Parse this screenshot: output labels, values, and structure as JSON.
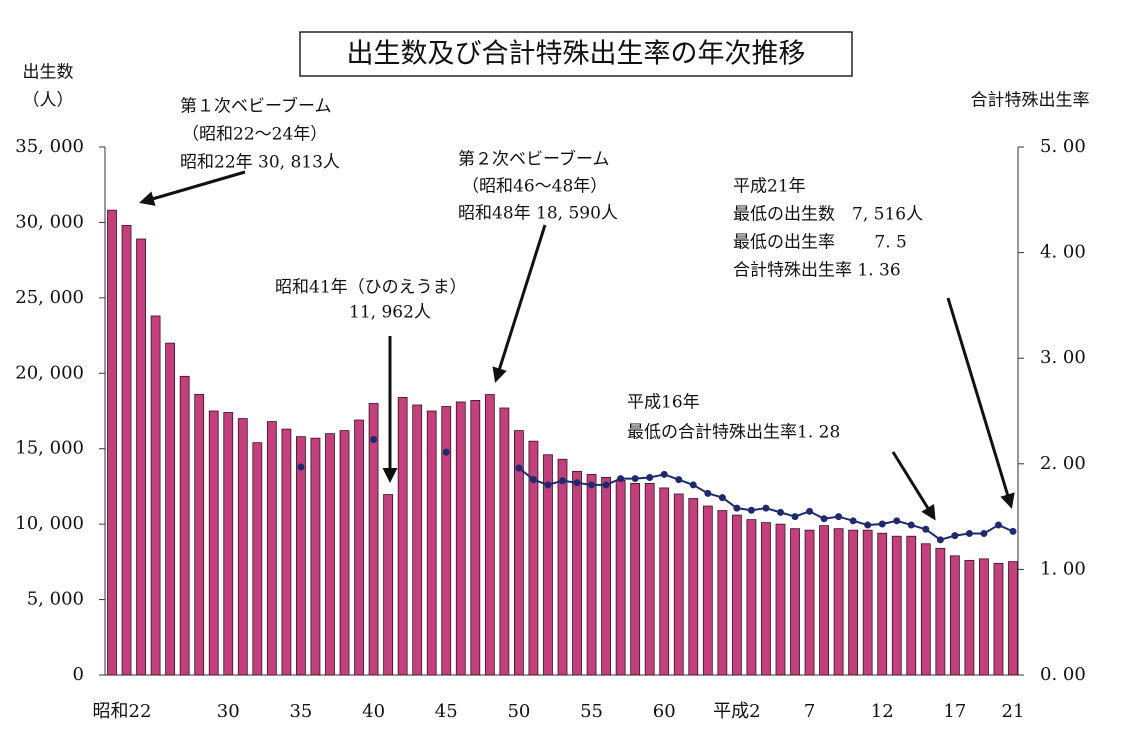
{
  "chart_data": {
    "type": "bar_line",
    "title": "出生数及び合計特殊出生率の年次推移",
    "y_label": [
      "出生数",
      "（人）"
    ],
    "y2_label": "合計特殊出生率",
    "categories": [
      "昭和22",
      null,
      null,
      null,
      null,
      null,
      null,
      null,
      "30",
      null,
      null,
      null,
      null,
      "35",
      null,
      null,
      null,
      null,
      "40",
      null,
      null,
      null,
      null,
      "45",
      null,
      null,
      null,
      null,
      "50",
      null,
      null,
      null,
      null,
      "55",
      null,
      null,
      null,
      null,
      "60",
      null,
      null,
      null,
      null,
      "平成2",
      null,
      null,
      null,
      null,
      "7",
      null,
      null,
      null,
      null,
      "12",
      null,
      null,
      null,
      null,
      "17",
      null,
      null,
      null,
      "21"
    ],
    "series": [
      {
        "name": "出生数",
        "color": "#c2407c",
        "values": [
          30813,
          29800,
          28900,
          23800,
          22000,
          19800,
          18600,
          17500,
          17400,
          17000,
          15400,
          16800,
          16300,
          15800,
          15700,
          16000,
          16200,
          16900,
          18000,
          11962,
          18400,
          17900,
          17500,
          17800,
          18100,
          18200,
          18590,
          17700,
          16200,
          15500,
          14600,
          14300,
          13500,
          13300,
          13100,
          12900,
          12700,
          12700,
          12400,
          12000,
          11700,
          11200,
          10900,
          10600,
          10300,
          10100,
          10000,
          9700,
          9600,
          9900,
          9700,
          9600,
          9600,
          9400,
          9200,
          9200,
          8700,
          8400,
          7900,
          7600,
          7700,
          7400,
          7516
        ]
      },
      {
        "name": "合計特殊出生率",
        "color": "#1f2a6e",
        "axis": "y2",
        "values": [
          null,
          null,
          null,
          null,
          null,
          null,
          null,
          null,
          null,
          null,
          null,
          null,
          null,
          1.97,
          null,
          null,
          null,
          null,
          2.23,
          null,
          null,
          null,
          null,
          2.11,
          null,
          null,
          null,
          null,
          1.96,
          1.85,
          1.8,
          1.84,
          1.82,
          1.8,
          1.8,
          1.86,
          1.86,
          1.87,
          1.9,
          1.85,
          1.8,
          1.72,
          1.68,
          1.58,
          1.56,
          1.58,
          1.54,
          1.5,
          1.55,
          1.48,
          1.5,
          1.46,
          1.42,
          1.43,
          1.46,
          1.42,
          1.38,
          1.28,
          1.32,
          1.34,
          1.34,
          1.42,
          1.36
        ]
      }
    ],
    "ylim": [
      0,
      35000
    ],
    "yticks": [
      0,
      {
        "value": 5000,
        "label": "5, 000"
      },
      {
        "value": 10000,
        "label": "10, 000"
      },
      {
        "value": 15000,
        "label": "15, 000"
      },
      {
        "value": 20000,
        "label": "20, 000"
      },
      {
        "value": 25000,
        "label": "25, 000"
      },
      {
        "value": 30000,
        "label": "30, 000"
      },
      {
        "value": 35000,
        "label": "35, 000"
      }
    ],
    "y2lim": [
      0,
      5
    ],
    "y2ticks": [
      {
        "value": 0,
        "label": "0. 00"
      },
      {
        "value": 1,
        "label": "1. 00"
      },
      {
        "value": 2,
        "label": "2. 00"
      },
      {
        "value": 3,
        "label": "3. 00"
      },
      {
        "value": 4,
        "label": "4. 00"
      },
      {
        "value": 5,
        "label": "5. 00"
      }
    ],
    "annotations": [
      [
        "第１次ベビーブーム",
        "（昭和22～24年）",
        "昭和22年  30, 813人"
      ],
      [
        "第２次ベビーブーム",
        "（昭和46～48年）",
        "昭和48年  18, 590人"
      ],
      [
        "昭和41年（ひのえうま）",
        "11, 962人"
      ],
      [
        "平成16年",
        "最低の合計特殊出生率1. 28"
      ],
      [
        "平成21年",
        "最低の出生数　7, 516人",
        "最低の出生率　　 7. 5",
        "合計特殊出生率  1. 36"
      ]
    ]
  }
}
